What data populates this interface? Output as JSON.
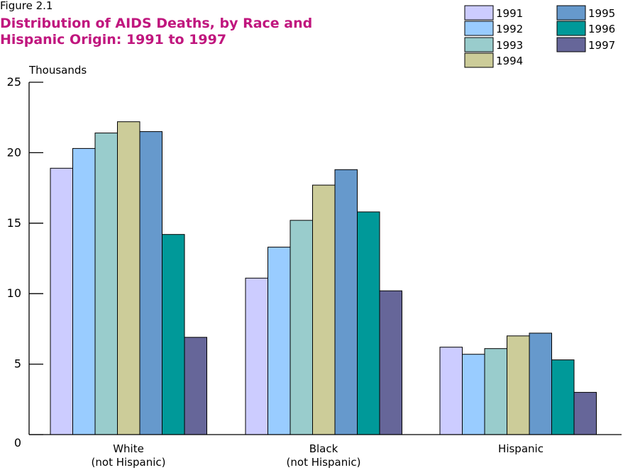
{
  "figure_label": "Figure 2.1",
  "chart_data": {
    "type": "bar",
    "title": "Distribution of AIDS Deaths, by Race and Hispanic Origin:  1991 to 1997",
    "ylabel": "Thousands",
    "xlabel": "",
    "categories": [
      "White\n(not Hispanic)",
      "Black\n(not Hispanic)",
      "Hispanic"
    ],
    "ylim": [
      0,
      25
    ],
    "yticks": [
      "0",
      "5",
      "10",
      "15",
      "20",
      "25"
    ],
    "grid": false,
    "legend_position": "top-right",
    "series": [
      {
        "name": "1991",
        "color": "#ccccff",
        "values": [
          18.9,
          11.1,
          6.2
        ]
      },
      {
        "name": "1992",
        "color": "#99ccff",
        "values": [
          20.3,
          13.3,
          5.7
        ]
      },
      {
        "name": "1993",
        "color": "#99cccc",
        "values": [
          21.4,
          15.2,
          6.1
        ]
      },
      {
        "name": "1994",
        "color": "#cccc99",
        "values": [
          22.2,
          17.7,
          7.0
        ]
      },
      {
        "name": "1995",
        "color": "#6699cc",
        "values": [
          21.5,
          18.8,
          7.2
        ]
      },
      {
        "name": "1996",
        "color": "#009999",
        "values": [
          14.2,
          15.8,
          5.3
        ]
      },
      {
        "name": "1997",
        "color": "#666699",
        "values": [
          6.9,
          10.2,
          3.0
        ]
      }
    ]
  }
}
